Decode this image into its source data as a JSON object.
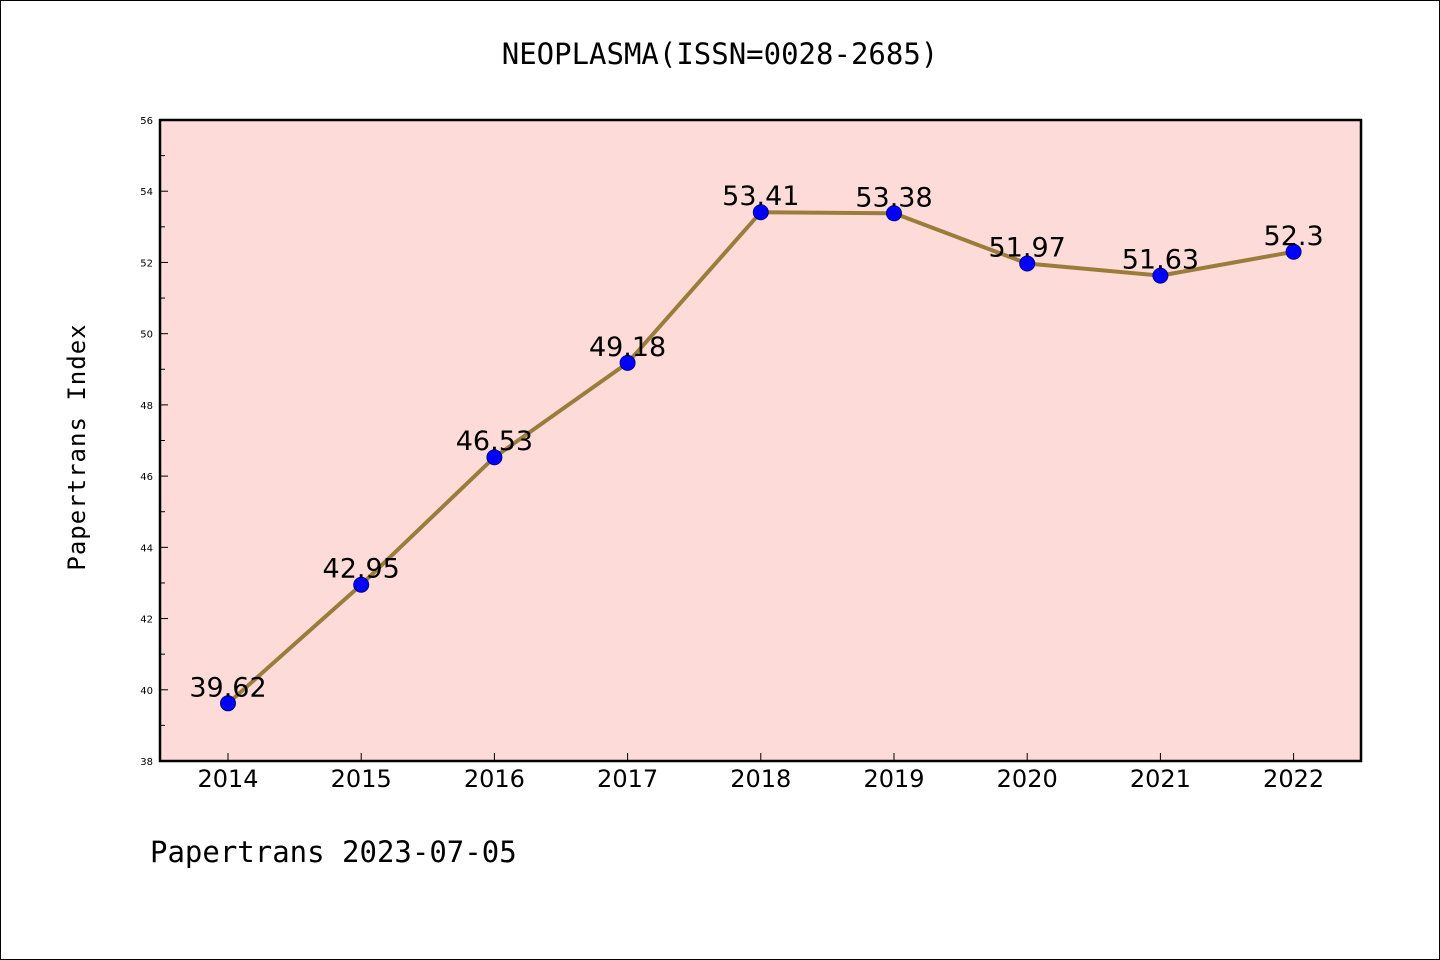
{
  "chart_data": {
    "type": "line",
    "title": "NEOPLASMA(ISSN=0028-2685)",
    "xlabel": "",
    "ylabel": "Papertrans Index",
    "categories": [
      "2014",
      "2015",
      "2016",
      "2017",
      "2018",
      "2019",
      "2020",
      "2021",
      "2022"
    ],
    "series": [
      {
        "values": [
          39.62,
          42.95,
          46.53,
          49.18,
          53.41,
          53.38,
          51.97,
          51.63,
          52.3
        ]
      }
    ],
    "data_labels": [
      "39.62",
      "42.95",
      "46.53",
      "49.18",
      "53.41",
      "53.38",
      "51.97",
      "51.63",
      "52.3"
    ],
    "ylim": [
      38,
      56
    ],
    "yticks": [
      38,
      40,
      42,
      44,
      46,
      48,
      50,
      52,
      54,
      56
    ],
    "grid": false,
    "legend": "none",
    "colors": {
      "plot_background": "#fddbd9",
      "line": "#9a7d3a",
      "marker": "#0000ff",
      "axes": "#000000"
    }
  },
  "footer": "Papertrans 2023-07-05"
}
